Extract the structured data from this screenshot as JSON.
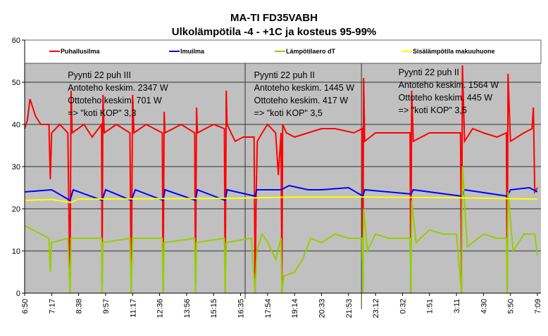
{
  "chart_data": {
    "type": "line",
    "title": "MA-TI FD35VABH",
    "subtitle": "Ulkolämpötila -4 - +1C ja kosteus 95-99%",
    "xlabel": "",
    "ylabel": "",
    "ylim": [
      0,
      60
    ],
    "yticks": [
      "0",
      "10",
      "20",
      "30",
      "40",
      "50",
      "60"
    ],
    "x_tick_labels": [
      "6:50",
      "7:17",
      "8:38",
      "9:57",
      "11:17",
      "12:36",
      "13:56",
      "15:15",
      "16:35",
      "17:54",
      "19:14",
      "20:33",
      "21:53",
      "23:12",
      "0:32",
      "1:51",
      "3:11",
      "4:30",
      "5:50",
      "7:09"
    ],
    "grid": true,
    "legend_position": "top",
    "series": [
      {
        "name": "Puhallusilma",
        "color": "#ff0000",
        "points": [
          [
            0,
            39
          ],
          [
            0.1,
            41
          ],
          [
            0.2,
            46
          ],
          [
            0.4,
            42
          ],
          [
            0.6,
            40
          ],
          [
            0.9,
            40
          ],
          [
            0.95,
            27
          ],
          [
            1.0,
            38
          ],
          [
            1.3,
            40
          ],
          [
            1.6,
            38
          ],
          [
            1.68,
            0
          ],
          [
            1.72,
            48
          ],
          [
            1.76,
            38
          ],
          [
            2.2,
            40
          ],
          [
            2.5,
            37
          ],
          [
            2.85,
            40
          ],
          [
            2.87,
            2
          ],
          [
            2.9,
            47
          ],
          [
            2.95,
            38
          ],
          [
            3.4,
            40
          ],
          [
            3.9,
            38
          ],
          [
            3.95,
            0
          ],
          [
            4.0,
            47
          ],
          [
            4.05,
            38
          ],
          [
            4.5,
            40
          ],
          [
            5.1,
            38
          ],
          [
            5.13,
            0
          ],
          [
            5.17,
            43
          ],
          [
            5.2,
            38
          ],
          [
            5.8,
            40
          ],
          [
            6.3,
            38
          ],
          [
            6.33,
            2
          ],
          [
            6.37,
            44
          ],
          [
            6.4,
            38
          ],
          [
            7.0,
            40
          ],
          [
            7.4,
            39
          ],
          [
            7.43,
            0
          ],
          [
            7.47,
            48
          ],
          [
            7.5,
            40
          ],
          [
            7.8,
            36
          ],
          [
            8.1,
            37
          ],
          [
            8.5,
            37
          ],
          [
            8.54,
            0
          ],
          [
            8.58,
            24
          ],
          [
            8.62,
            36
          ],
          [
            8.8,
            38
          ],
          [
            9.0,
            40
          ],
          [
            9.3,
            38
          ],
          [
            9.4,
            28
          ],
          [
            9.5,
            38
          ],
          [
            9.53,
            0
          ],
          [
            9.56,
            40
          ],
          [
            9.7,
            38
          ],
          [
            10.0,
            37
          ],
          [
            10.5,
            38
          ],
          [
            11.0,
            39
          ],
          [
            11.5,
            39
          ],
          [
            12.2,
            38
          ],
          [
            12.5,
            39
          ],
          [
            12.53,
            0
          ],
          [
            12.56,
            51
          ],
          [
            12.6,
            36
          ],
          [
            13,
            38
          ],
          [
            13.5,
            38
          ],
          [
            14,
            38
          ],
          [
            14.28,
            38
          ],
          [
            14.31,
            0
          ],
          [
            14.34,
            48
          ],
          [
            14.4,
            36
          ],
          [
            15,
            38
          ],
          [
            15.5,
            38
          ],
          [
            16.15,
            38
          ],
          [
            16.19,
            0
          ],
          [
            16.22,
            54
          ],
          [
            16.3,
            36
          ],
          [
            16.6,
            39
          ],
          [
            17,
            38
          ],
          [
            17.5,
            37
          ],
          [
            17.85,
            38
          ],
          [
            17.88,
            0
          ],
          [
            17.91,
            52
          ],
          [
            18,
            36
          ],
          [
            18.5,
            38
          ],
          [
            18.8,
            39
          ],
          [
            18.85,
            44
          ],
          [
            18.9,
            24
          ],
          [
            19,
            25
          ]
        ]
      },
      {
        "name": "Imuilma",
        "color": "#0000ff",
        "points": [
          [
            0,
            24
          ],
          [
            1,
            24.5
          ],
          [
            1.68,
            22
          ],
          [
            1.8,
            24.5
          ],
          [
            2.87,
            22
          ],
          [
            3,
            24.5
          ],
          [
            3.95,
            22
          ],
          [
            4.1,
            24.5
          ],
          [
            5.13,
            22
          ],
          [
            5.2,
            24.5
          ],
          [
            6.33,
            22
          ],
          [
            6.4,
            24.5
          ],
          [
            7.43,
            22
          ],
          [
            7.5,
            24.5
          ],
          [
            8.54,
            23
          ],
          [
            8.6,
            24.5
          ],
          [
            9.5,
            24.5
          ],
          [
            9.8,
            25.5
          ],
          [
            10.5,
            24.5
          ],
          [
            11,
            24.5
          ],
          [
            12,
            25
          ],
          [
            12.53,
            23
          ],
          [
            12.6,
            24.5
          ],
          [
            14.31,
            23.5
          ],
          [
            14.4,
            24.5
          ],
          [
            16.19,
            23
          ],
          [
            16.3,
            24.5
          ],
          [
            17.88,
            23
          ],
          [
            18,
            24.5
          ],
          [
            18.7,
            25
          ],
          [
            19,
            24
          ]
        ]
      },
      {
        "name": "Lämpötilaero dT",
        "color": "#99cc00",
        "points": [
          [
            0,
            16
          ],
          [
            0.3,
            15
          ],
          [
            0.9,
            13
          ],
          [
            0.95,
            5
          ],
          [
            1,
            12
          ],
          [
            1.6,
            13
          ],
          [
            1.68,
            0
          ],
          [
            1.72,
            13
          ],
          [
            2.85,
            13
          ],
          [
            2.87,
            0
          ],
          [
            2.9,
            12
          ],
          [
            3.9,
            13
          ],
          [
            3.95,
            0
          ],
          [
            4.0,
            13
          ],
          [
            5.1,
            13
          ],
          [
            5.13,
            0
          ],
          [
            5.17,
            12
          ],
          [
            6.3,
            13
          ],
          [
            6.33,
            0
          ],
          [
            6.37,
            12
          ],
          [
            7.4,
            13
          ],
          [
            7.43,
            0
          ],
          [
            7.47,
            12
          ],
          [
            8.4,
            13
          ],
          [
            8.54,
            0
          ],
          [
            8.6,
            10
          ],
          [
            8.8,
            14
          ],
          [
            9.0,
            12
          ],
          [
            9.3,
            8
          ],
          [
            9.5,
            13
          ],
          [
            9.53,
            0
          ],
          [
            9.6,
            4
          ],
          [
            10,
            5
          ],
          [
            10.3,
            8
          ],
          [
            10.6,
            13
          ],
          [
            11,
            12
          ],
          [
            11.5,
            14
          ],
          [
            12,
            13
          ],
          [
            12.5,
            13
          ],
          [
            12.53,
            0
          ],
          [
            12.56,
            20
          ],
          [
            12.7,
            10
          ],
          [
            13,
            14
          ],
          [
            13.5,
            13
          ],
          [
            14,
            13
          ],
          [
            14.28,
            13
          ],
          [
            14.31,
            0
          ],
          [
            14.34,
            22
          ],
          [
            14.5,
            12
          ],
          [
            15,
            15
          ],
          [
            15.5,
            14
          ],
          [
            16,
            14
          ],
          [
            16.19,
            0
          ],
          [
            16.22,
            30
          ],
          [
            16.4,
            11
          ],
          [
            17,
            14
          ],
          [
            17.5,
            13
          ],
          [
            17.85,
            13
          ],
          [
            17.88,
            0
          ],
          [
            17.91,
            24
          ],
          [
            18.1,
            10
          ],
          [
            18.5,
            14
          ],
          [
            18.9,
            14
          ],
          [
            19,
            9
          ]
        ]
      },
      {
        "name": "Sisälämpötila makuuhuone",
        "color": "#ffff00",
        "points": [
          [
            0,
            22
          ],
          [
            1,
            22.2
          ],
          [
            1.7,
            21.5
          ],
          [
            2,
            22.3
          ],
          [
            5,
            22.4
          ],
          [
            8,
            22.5
          ],
          [
            10,
            22.8
          ],
          [
            12.5,
            22.8
          ],
          [
            16,
            22.6
          ],
          [
            19,
            22.3
          ]
        ]
      }
    ],
    "separators": [
      8.17,
      12.48
    ],
    "annotations": [
      {
        "x": 1.6,
        "lines": [
          "Pyynti 22 puh III",
          "Antoteho keskim. 2347 W",
          "Ottoteho keskim. 701 W",
          "=> \"koti KOP\" 3,3"
        ]
      },
      {
        "x": 8.5,
        "lines": [
          "Pyynti 22 puh II",
          "Antoteho keskim. 1445 W",
          "Ottoteho keskim. 417 W",
          "=> \"koti KOP\" 3,5"
        ]
      },
      {
        "x": 13.85,
        "lines": [
          "Pyynti 22 puh II",
          "Antoteho keskim. 1564 W",
          "Ottoteho keskim. 445 W",
          "=> \"koti KOP\" 3,5"
        ]
      }
    ]
  }
}
